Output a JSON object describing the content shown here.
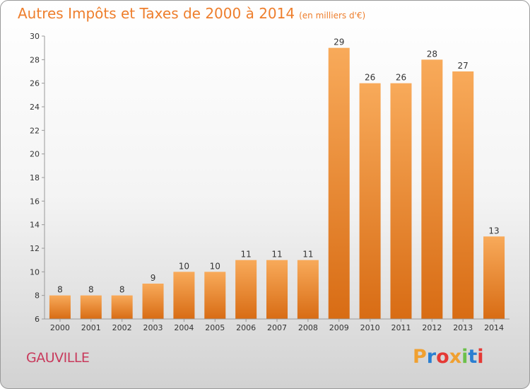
{
  "page": {
    "title": "Autres Impôts et Taxes de 2000 à 2014",
    "unit": "(en milliers d'€)",
    "commune": "GAUVILLE",
    "logo": {
      "letters": [
        "P",
        "r",
        "o",
        "x",
        "i",
        "t",
        "i"
      ],
      "colors": [
        "#f0a030",
        "#2a7fd1",
        "#e53935",
        "#f0a030",
        "#6cc04a",
        "#2a7fd1",
        "#e53935"
      ]
    }
  },
  "chart_data": {
    "type": "bar",
    "categories": [
      "2000",
      "2001",
      "2002",
      "2003",
      "2004",
      "2005",
      "2006",
      "2007",
      "2008",
      "2009",
      "2010",
      "2011",
      "2012",
      "2013",
      "2014"
    ],
    "values": [
      8,
      8,
      8,
      9,
      10,
      10,
      11,
      11,
      11,
      29,
      26,
      26,
      28,
      27,
      13
    ],
    "title": "Autres Impôts et Taxes de 2000 à 2014",
    "xlabel": "",
    "ylabel": "",
    "ylim": [
      6,
      30
    ],
    "yticks": [
      6,
      8,
      10,
      12,
      14,
      16,
      18,
      20,
      22,
      24,
      26,
      28,
      30
    ],
    "grid": false,
    "bar_color": "#ee8a2e",
    "data_labels": true
  }
}
